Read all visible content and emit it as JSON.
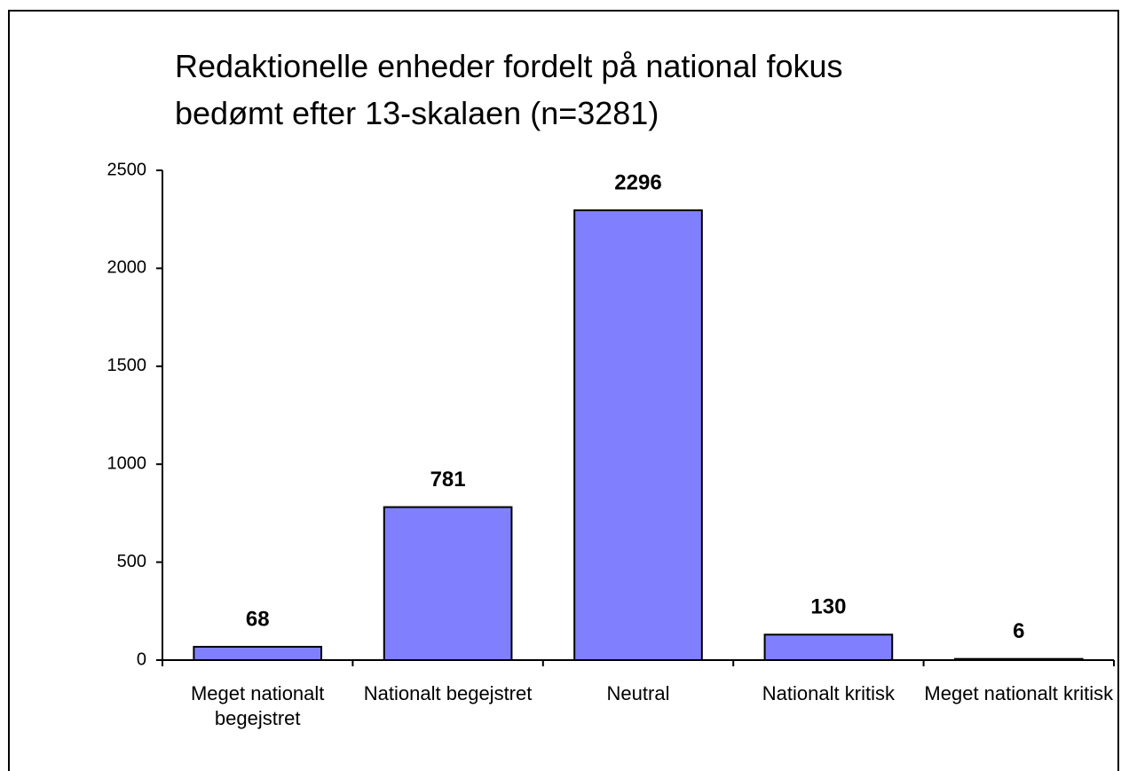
{
  "chart_data": {
    "type": "bar",
    "title": "Redaktionelle enheder fordelt på national fokus bedømt efter 13-skalaen (n=3281)",
    "categories": [
      "Meget nationalt begejstret",
      "Nationalt begejstret",
      "Neutral",
      "Nationalt kritisk",
      "Meget nationalt kritisk"
    ],
    "values": [
      68,
      781,
      2296,
      130,
      6
    ],
    "color": "#8080ff",
    "ylim": [
      0,
      2500
    ],
    "yticks": [
      0,
      500,
      1000,
      1500,
      2000,
      2500
    ],
    "grid": false
  }
}
